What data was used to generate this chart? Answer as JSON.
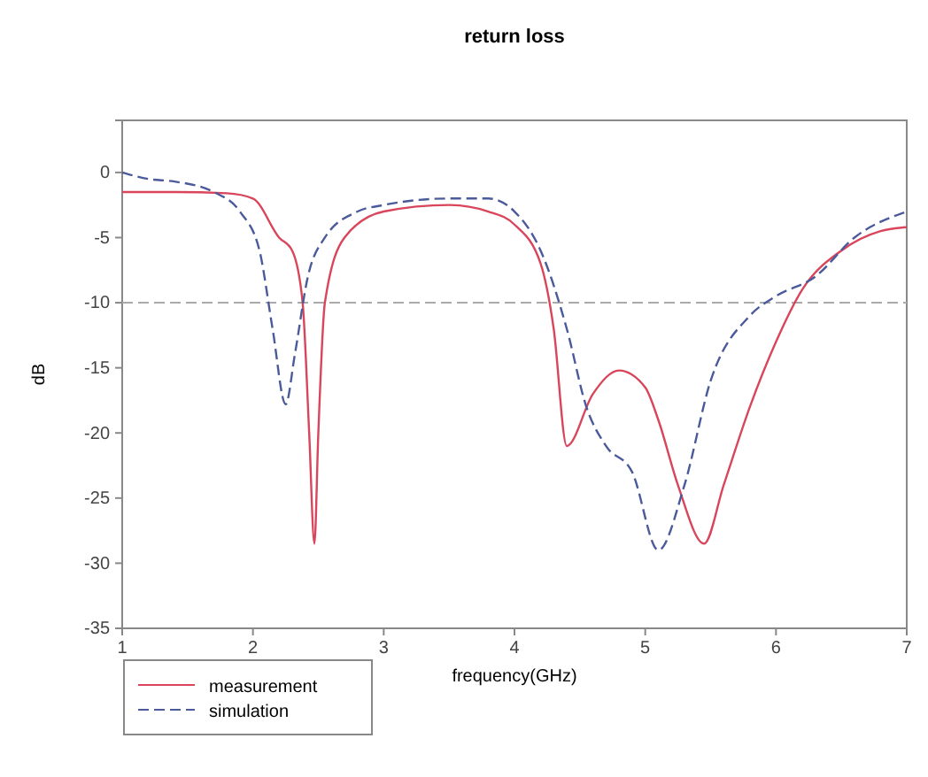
{
  "chart_data": {
    "type": "line",
    "title": "return loss",
    "xlabel": "frequency(GHz)",
    "ylabel": "dB",
    "xlim": [
      1,
      7
    ],
    "ylim": [
      -35,
      4
    ],
    "xticks": [
      1,
      2,
      3,
      4,
      5,
      6,
      7
    ],
    "yticks": [
      0,
      -5,
      -10,
      -15,
      -20,
      -25,
      -30,
      -35
    ],
    "legend": "bottom left",
    "grid": false,
    "ref_lines": [
      {
        "axis": "y",
        "value": -10,
        "color": "#aaaaaa",
        "line_style": "dashed"
      }
    ],
    "series": [
      {
        "name": "measurement",
        "color": "#d9455a",
        "line_style": "solid",
        "x": [
          1,
          1.4,
          1.8,
          2.0,
          2.2,
          2.3,
          2.38,
          2.43,
          2.47,
          2.5,
          2.55,
          2.7,
          3.0,
          3.5,
          3.8,
          4.0,
          4.2,
          4.3,
          4.4,
          4.6,
          4.8,
          5.0,
          5.1,
          5.25,
          5.45,
          5.6,
          5.8,
          6.0,
          6.2,
          6.5,
          6.8,
          7
        ],
        "values": [
          -1.5,
          -1.5,
          -1.6,
          -2,
          -5,
          -6,
          -10,
          -20,
          -28.5,
          -20,
          -10,
          -5,
          -3,
          -2.5,
          -3,
          -4,
          -7,
          -12,
          -21,
          -17,
          -15.2,
          -16.5,
          -19,
          -24,
          -28.5,
          -24,
          -18,
          -13,
          -9,
          -6,
          -4.5,
          -4.2
        ]
      },
      {
        "name": "simulation",
        "color": "#4a5a9a",
        "line_style": "dashed",
        "x": [
          1,
          1.2,
          1.4,
          1.7,
          1.9,
          2.05,
          2.15,
          2.25,
          2.32,
          2.42,
          2.55,
          2.8,
          3.0,
          3.5,
          3.8,
          4.0,
          4.2,
          4.4,
          4.55,
          4.7,
          4.9,
          5.1,
          5.3,
          5.5,
          5.8,
          6.0,
          6.3,
          6.6,
          7
        ],
        "values": [
          0,
          -0.5,
          -0.7,
          -1.5,
          -3,
          -6,
          -12,
          -17.8,
          -14,
          -8,
          -5,
          -3,
          -2.5,
          -2,
          -2,
          -3,
          -6,
          -12,
          -18,
          -21,
          -23,
          -29,
          -24,
          -16,
          -11,
          -9.5,
          -8,
          -5,
          -3
        ]
      }
    ]
  }
}
